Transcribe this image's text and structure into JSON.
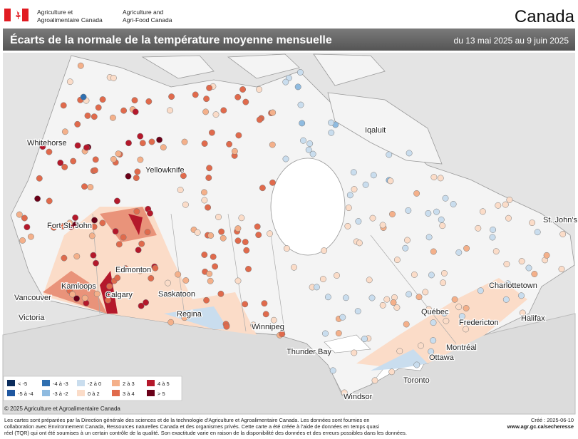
{
  "header": {
    "dept_fr": [
      "Agriculture et",
      "Agroalimentaire Canada"
    ],
    "dept_en": [
      "Agriculture and",
      "Agri-Food Canada"
    ],
    "wordmark": "Canada"
  },
  "title": {
    "text": "Écarts de la normale de la température moyenne mensuelle",
    "date_range": "du 13 mai 2025 au 9 juin 2025"
  },
  "cities": [
    "Whitehorse",
    "Iqaluit",
    "Yellowknife",
    "Fort St. John",
    "Edmonton",
    "Kamloops",
    "Vancouver",
    "Calgary",
    "Victoria",
    "Saskatoon",
    "Regina",
    "Winnipeg",
    "Thunder Bay",
    "St. John's",
    "Charlottetown",
    "Halifax",
    "Fredericton",
    "Québec",
    "Montréal",
    "Ottawa",
    "Toronto",
    "Windsor"
  ],
  "legend": [
    {
      "label": "< -5",
      "color": "#0b2c5c"
    },
    {
      "label": "-4 à -3",
      "color": "#2f6fb0"
    },
    {
      "label": "-2 à 0",
      "color": "#c9ddee"
    },
    {
      "label": "2 à 3",
      "color": "#f4b08a"
    },
    {
      "label": "4 à 5",
      "color": "#b4182b"
    },
    {
      "label": "-5 à -4",
      "color": "#1f57a0"
    },
    {
      "label": "-3 à -2",
      "color": "#8fbbe0"
    },
    {
      "label": "0 à 2",
      "color": "#fbdcc8"
    },
    {
      "label": "3 à 4",
      "color": "#e06a4c"
    },
    {
      "label": "> 5",
      "color": "#6a0018"
    }
  ],
  "copyright": "© 2025 Agriculture et Agroalimentaire Canada",
  "footer": {
    "lines": [
      "Les cartes sont préparées par la Direction générale des sciences et de la technologie d'Agriculture et Agroalimentaire Canada. Les données sont fournies en",
      "collaboration avec Environnement Canada, Ressources naturelles Canada et des organismes privés. Cette carte a été créée à l'aide de données en temps quasi",
      "réel (TQR) qui ont été soumises à un certain contrôle de la qualité. Son exactitude varie en raison de la disponibilité des données et des erreurs possibles dans les données."
    ],
    "created": "Créé : 2025-06-10",
    "url": "www.agr.gc.ca/secheresse"
  }
}
